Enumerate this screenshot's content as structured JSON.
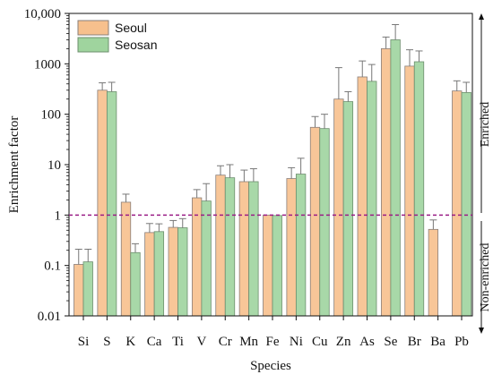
{
  "colors": {
    "seoul": "#f7c08d",
    "seosan": "#9fd49e",
    "seoul_edge": "#8a7f7a",
    "seosan_edge": "#6d8f6e",
    "error_bar": "#777777",
    "threshold_line": "#9a1d86"
  },
  "chart_data": {
    "type": "bar",
    "xlabel": "Species",
    "ylabel": "Enrichment factor",
    "y_scale": "log",
    "ylim": [
      0.01,
      10000
    ],
    "y_ticks": [
      "0.01",
      "0.1",
      "1",
      "10",
      "100",
      "1000",
      "10,000"
    ],
    "categories": [
      "Si",
      "S",
      "K",
      "Ca",
      "Ti",
      "V",
      "Cr",
      "Mn",
      "Fe",
      "Ni",
      "Cu",
      "Zn",
      "As",
      "Se",
      "Br",
      "Ba",
      "Pb"
    ],
    "series": [
      {
        "name": "Seoul",
        "values": [
          0.105,
          300,
          1.8,
          0.45,
          0.57,
          2.2,
          6.2,
          4.6,
          1.0,
          5.3,
          55,
          200,
          550,
          2000,
          900,
          0.52,
          290
        ],
        "upper_error": [
          0.21,
          420,
          2.6,
          0.68,
          0.78,
          3.2,
          9.5,
          7.8,
          null,
          8.7,
          90,
          840,
          1140,
          3400,
          1900,
          0.8,
          460
        ]
      },
      {
        "name": "Seosan",
        "values": [
          0.118,
          280,
          0.18,
          0.47,
          0.56,
          1.9,
          5.5,
          4.6,
          0.98,
          6.5,
          52,
          178,
          450,
          3000,
          1100,
          null,
          270
        ],
        "upper_error": [
          0.21,
          430,
          0.27,
          0.67,
          0.85,
          4.2,
          10,
          8.3,
          null,
          13.4,
          100,
          280,
          970,
          6000,
          1800,
          null,
          430
        ]
      }
    ],
    "threshold": {
      "value": 1,
      "style": "dashed"
    },
    "annotations": {
      "above": "Enriched",
      "below": "Non-enriched"
    },
    "legend": {
      "placement": "top-left",
      "entries": [
        "Seoul",
        "Seosan"
      ]
    },
    "grid": false
  }
}
